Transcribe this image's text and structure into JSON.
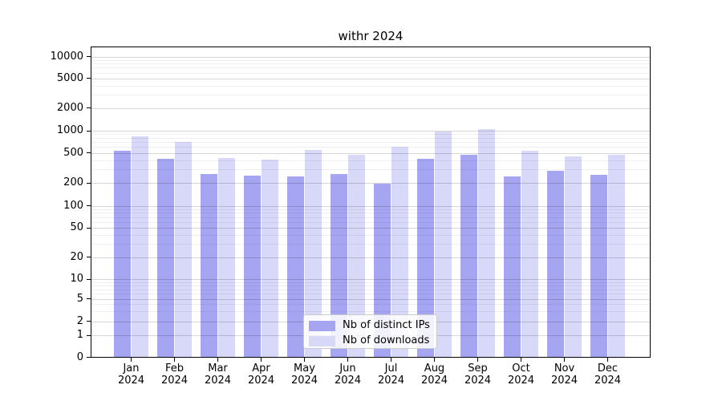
{
  "title": "withr 2024",
  "colors": {
    "bar_distinct_ips": "#a5a5f2",
    "bar_downloads": "#d8d8f8",
    "grid_major": "rgba(0,0,0,0.16)",
    "grid_minor": "rgba(0,0,0,0.06)",
    "axis": "#000000",
    "background": "#ffffff"
  },
  "x_axis": {
    "months": [
      "Jan",
      "Feb",
      "Mar",
      "Apr",
      "May",
      "Jun",
      "Jul",
      "Aug",
      "Sep",
      "Oct",
      "Nov",
      "Dec"
    ],
    "year": "2024"
  },
  "legend": {
    "items": [
      {
        "label": "Nb of distinct IPs",
        "color": "#a5a5f2"
      },
      {
        "label": "Nb of downloads",
        "color": "#d8d8f8"
      }
    ]
  },
  "chart_data": {
    "type": "bar",
    "title": "withr 2024",
    "categories": [
      "Jan 2024",
      "Feb 2024",
      "Mar 2024",
      "Apr 2024",
      "May 2024",
      "Jun 2024",
      "Jul 2024",
      "Aug 2024",
      "Sep 2024",
      "Oct 2024",
      "Nov 2024",
      "Dec 2024"
    ],
    "series": [
      {
        "name": "Nb of distinct IPs",
        "key": "distinct-ips",
        "color": "#a5a5f2",
        "values": [
          530,
          415,
          260,
          248,
          242,
          260,
          197,
          418,
          477,
          246,
          290,
          256
        ]
      },
      {
        "name": "Nb of downloads",
        "key": "downloads",
        "color": "#d8d8f8",
        "values": [
          845,
          715,
          430,
          405,
          550,
          475,
          615,
          985,
          1060,
          530,
          450,
          470
        ]
      }
    ],
    "xlabel": "",
    "ylabel": "",
    "yscale": "symlog",
    "y_ticks": [
      0,
      1,
      2,
      5,
      10,
      20,
      50,
      100,
      200,
      500,
      1000,
      2000,
      5000,
      10000
    ],
    "y_minor_ticks_per_decade": [
      3,
      4,
      6,
      7,
      8,
      9
    ],
    "ylim": [
      0,
      13500
    ],
    "grid": {
      "horizontal_major": true,
      "horizontal_minor": true,
      "vertical": false
    },
    "legend_position": "lower center inside plot",
    "bar_group_width": 0.8,
    "bars_per_group": 2
  }
}
